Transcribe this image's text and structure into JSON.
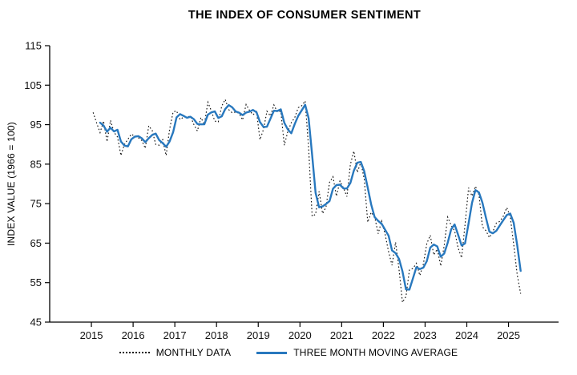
{
  "chart_data": {
    "type": "line",
    "title": "THE INDEX OF CONSUMER SENTIMENT",
    "ylabel": "INDEX VALUE (1966 = 100)",
    "xlabel": "",
    "ylim": [
      45,
      115
    ],
    "yticks": [
      45,
      55,
      65,
      75,
      85,
      95,
      105,
      115
    ],
    "xlim": [
      2014.0,
      2026.2
    ],
    "xticks": [
      2015,
      2016,
      2017,
      2018,
      2019,
      2020,
      2021,
      2022,
      2023,
      2024,
      2025
    ],
    "x_start": 2015,
    "points_per_year": 12,
    "grid": false,
    "legend_position": "bottom",
    "series": [
      {
        "name": "MONTHLY DATA",
        "style": "dotted",
        "color": "#111111",
        "values": [
          98.1,
          95.4,
          93.0,
          95.9,
          90.7,
          96.1,
          93.1,
          91.9,
          87.2,
          90.0,
          91.3,
          92.6,
          92.0,
          91.7,
          91.0,
          89.0,
          94.7,
          93.5,
          90.0,
          89.8,
          91.2,
          87.2,
          93.8,
          98.2,
          98.5,
          96.3,
          96.9,
          97.0,
          97.1,
          95.0,
          93.4,
          96.8,
          95.1,
          100.7,
          98.5,
          95.9,
          95.7,
          99.7,
          101.4,
          98.8,
          98.0,
          98.2,
          97.9,
          96.2,
          100.1,
          98.6,
          97.5,
          98.3,
          91.2,
          93.8,
          98.4,
          97.2,
          100.0,
          98.2,
          98.4,
          89.8,
          93.2,
          95.5,
          96.8,
          99.3,
          99.8,
          101.0,
          89.1,
          71.8,
          72.3,
          78.1,
          72.5,
          74.1,
          80.4,
          81.8,
          76.9,
          80.7,
          79.0,
          76.8,
          84.9,
          88.3,
          82.9,
          85.5,
          81.2,
          70.3,
          72.8,
          71.7,
          67.4,
          70.6,
          67.2,
          62.8,
          59.4,
          65.2,
          58.4,
          50.0,
          51.5,
          58.2,
          58.6,
          59.9,
          56.8,
          59.7,
          64.9,
          67.0,
          62.0,
          63.5,
          59.2,
          64.4,
          71.6,
          69.5,
          68.1,
          63.8,
          61.3,
          69.7,
          79.0,
          76.9,
          79.4,
          77.2,
          69.1,
          68.2,
          66.4,
          67.9,
          70.1,
          70.5,
          71.8,
          74.0,
          71.7,
          64.7,
          57.0,
          52.2
        ]
      },
      {
        "name": "THREE MONTH MOVING AVERAGE",
        "style": "solid",
        "color": "#2878BE",
        "derived": "moving_average",
        "window": 3
      }
    ]
  }
}
